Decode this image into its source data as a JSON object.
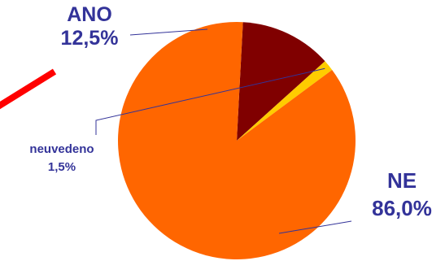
{
  "chart_data": {
    "type": "pie",
    "title": "",
    "slices": [
      {
        "label": "ANO",
        "value": 12.5,
        "value_label": "12,5%",
        "color": "#800000"
      },
      {
        "label": "neuvedeno",
        "value": 1.5,
        "value_label": "1,5%",
        "color": "#FFCC00"
      },
      {
        "label": "NE",
        "value": 86.0,
        "value_label": "86,0%",
        "color": "#FF6600"
      }
    ],
    "label_color": "#333399",
    "leader_line_color": "#333399",
    "annotations": [
      {
        "type": "arrow",
        "color": "#FF0000",
        "pointing_to": "ANO"
      }
    ],
    "legend": false
  }
}
